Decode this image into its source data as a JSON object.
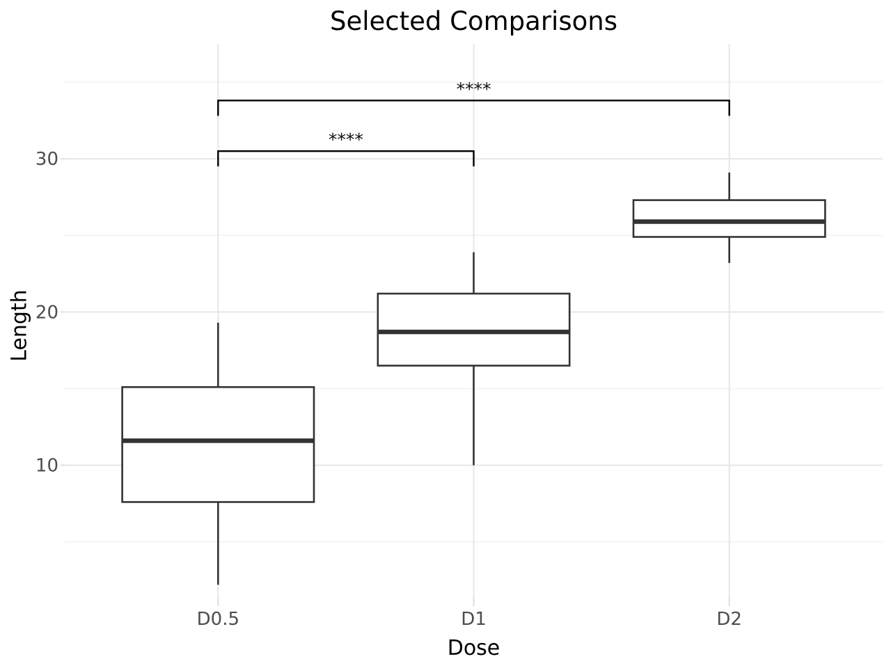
{
  "chart_data": {
    "type": "boxplot",
    "title": "Selected Comparisons",
    "xlabel": "Dose",
    "ylabel": "Length",
    "categories": [
      "D0.5",
      "D1",
      "D2"
    ],
    "series": [
      {
        "name": "D0.5",
        "min": 2.2,
        "q1": 7.6,
        "median": 11.6,
        "q3": 15.1,
        "max": 19.3
      },
      {
        "name": "D1",
        "min": 10.0,
        "q1": 16.5,
        "median": 18.7,
        "q3": 21.2,
        "max": 23.9
      },
      {
        "name": "D2",
        "min": 23.2,
        "q1": 24.9,
        "median": 25.9,
        "q3": 27.3,
        "max": 29.1
      }
    ],
    "y_ticks": [
      10,
      20,
      30
    ],
    "y_minor_ticks": [
      5,
      15,
      25,
      35
    ],
    "ylim": [
      1.4,
      37.5
    ],
    "legend_position": "none",
    "grid": {
      "horizontal_major": true,
      "horizontal_minor": true,
      "vertical_major": true
    },
    "annotations": [
      {
        "label": "****",
        "group1": "D0.5",
        "group2": "D1",
        "bar_y": 30.5,
        "tick_drop": 1.0
      },
      {
        "label": "****",
        "group1": "D0.5",
        "group2": "D2",
        "bar_y": 33.8,
        "tick_drop": 1.0
      }
    ],
    "colors": {
      "background": "#ffffff",
      "box_fill": "#ffffff",
      "box_stroke": "#333333",
      "median": "#333333",
      "bracket": "#000000",
      "sig_text": "#111111",
      "grid_major": "#e8e8e8",
      "grid_minor": "#f4f4f4",
      "tick_mark": "#dedede",
      "tick_label": "#4d4d4d",
      "text": "#000000"
    }
  }
}
